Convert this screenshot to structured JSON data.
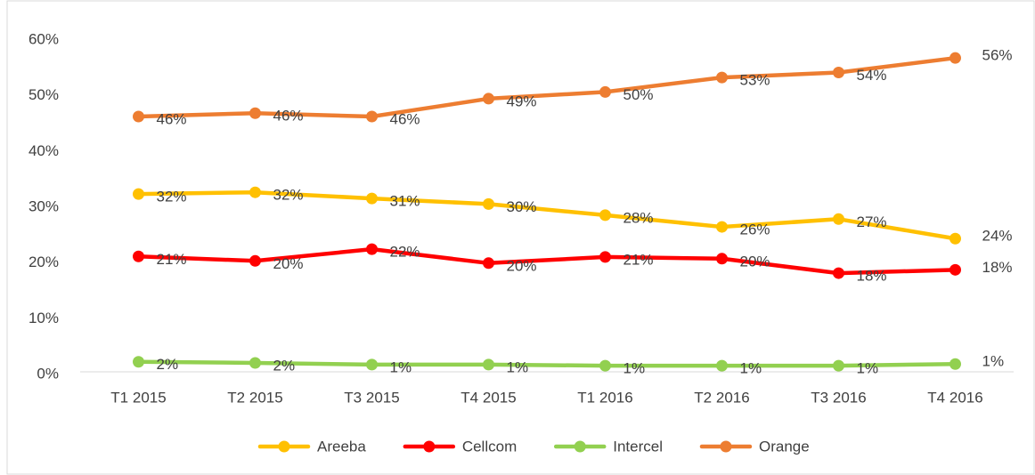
{
  "chart_data": {
    "type": "line",
    "categories": [
      "T1 2015",
      "T2 2015",
      "T3 2015",
      "T4 2015",
      "T1 2016",
      "T2 2016",
      "T3 2016",
      "T4 2016"
    ],
    "series": [
      {
        "name": "Areeba",
        "color": "#ffc000",
        "values": [
          31.9,
          32.2,
          31.1,
          30.1,
          28.1,
          26.0,
          27.4,
          23.9
        ],
        "value_labels": [
          "32%",
          "32%",
          "31%",
          "30%",
          "28%",
          "26%",
          "27%",
          "24%"
        ]
      },
      {
        "name": "Cellcom",
        "color": "#ff0000",
        "values": [
          20.7,
          19.9,
          22.0,
          19.5,
          20.6,
          20.3,
          17.7,
          18.3
        ],
        "value_labels": [
          "21%",
          "20%",
          "22%",
          "20%",
          "21%",
          "20%",
          "18%",
          "18%"
        ]
      },
      {
        "name": "Intercel",
        "color": "#92d050",
        "values": [
          1.8,
          1.6,
          1.3,
          1.3,
          1.1,
          1.1,
          1.1,
          1.4
        ],
        "value_labels": [
          "2%",
          "2%",
          "1%",
          "1%",
          "1%",
          "1%",
          "1%",
          "1%"
        ]
      },
      {
        "name": "Orange",
        "color": "#ed7d31",
        "values": [
          45.8,
          46.4,
          45.8,
          49.0,
          50.2,
          52.8,
          53.7,
          56.3
        ],
        "value_labels": [
          "46%",
          "46%",
          "46%",
          "49%",
          "50%",
          "53%",
          "54%",
          "56%"
        ]
      }
    ],
    "ylim": [
      0,
      60
    ],
    "yticks": [
      {
        "value": 0,
        "label": "0%"
      },
      {
        "value": 10,
        "label": "10%"
      },
      {
        "value": 20,
        "label": "20%"
      },
      {
        "value": 30,
        "label": "30%"
      },
      {
        "value": 40,
        "label": "40%"
      },
      {
        "value": 50,
        "label": "50%"
      },
      {
        "value": 60,
        "label": "60%"
      }
    ],
    "legend": "bottom"
  }
}
